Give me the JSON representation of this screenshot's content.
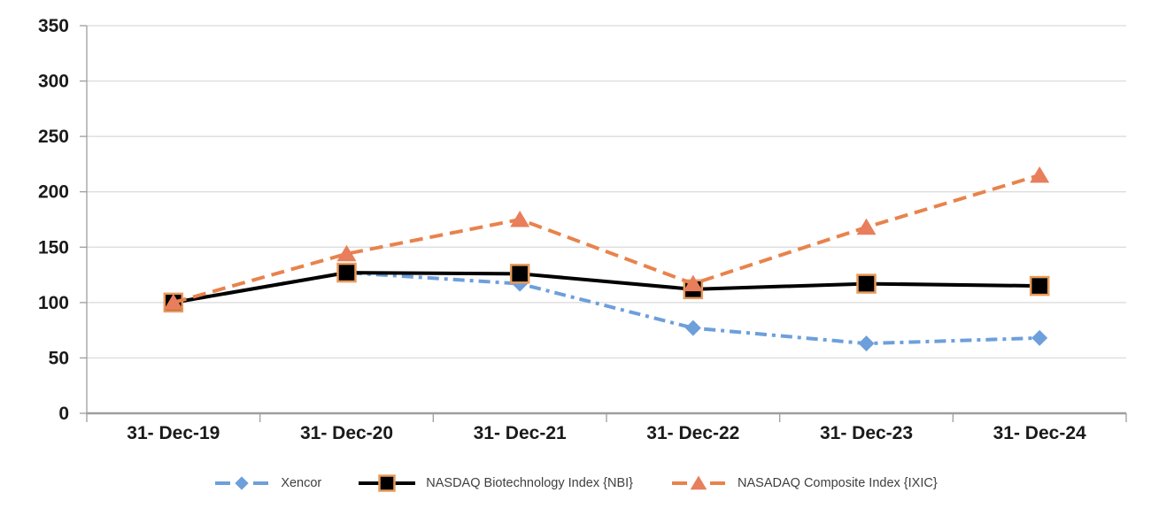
{
  "chart_data": {
    "type": "line",
    "title": "",
    "xlabel": "",
    "ylabel": "",
    "categories": [
      "31- Dec-19",
      "31- Dec-20",
      "31- Dec-21",
      "31- Dec-22",
      "31- Dec-23",
      "31- Dec-24"
    ],
    "series": [
      {
        "name": "Xencor",
        "values": [
          100,
          127,
          117,
          77,
          63,
          68
        ],
        "color": "#6D9FDB",
        "line_style": "dash-dot",
        "marker": "diamond",
        "marker_fill": "#6D9FDB"
      },
      {
        "name": "NASDAQ Biotechnology Index {NBI}",
        "values": [
          100,
          127,
          126,
          112,
          117,
          115
        ],
        "color": "#000000",
        "line_style": "solid",
        "marker": "square",
        "marker_fill": "#000000",
        "marker_stroke": "#E89B5A"
      },
      {
        "name": "NASADAQ Composite Index {IXIC}",
        "values": [
          100,
          144,
          175,
          117,
          168,
          215
        ],
        "color": "#E8834C",
        "line_style": "dash",
        "marker": "triangle",
        "marker_fill": "#E87E5B"
      }
    ],
    "ylim": [
      0,
      350
    ],
    "ytick_step": 50,
    "ytick_labels": [
      "0",
      "50",
      "100",
      "150",
      "200",
      "250",
      "300",
      "350"
    ],
    "grid": true,
    "legend_position": "bottom"
  },
  "style_colors": {
    "gridline": "#D9D9D9",
    "axis_line": "#9E9E9E",
    "axis_label": "#1A1A1A",
    "legend_text": "#3F3F3F",
    "background": "#FFFFFF"
  }
}
